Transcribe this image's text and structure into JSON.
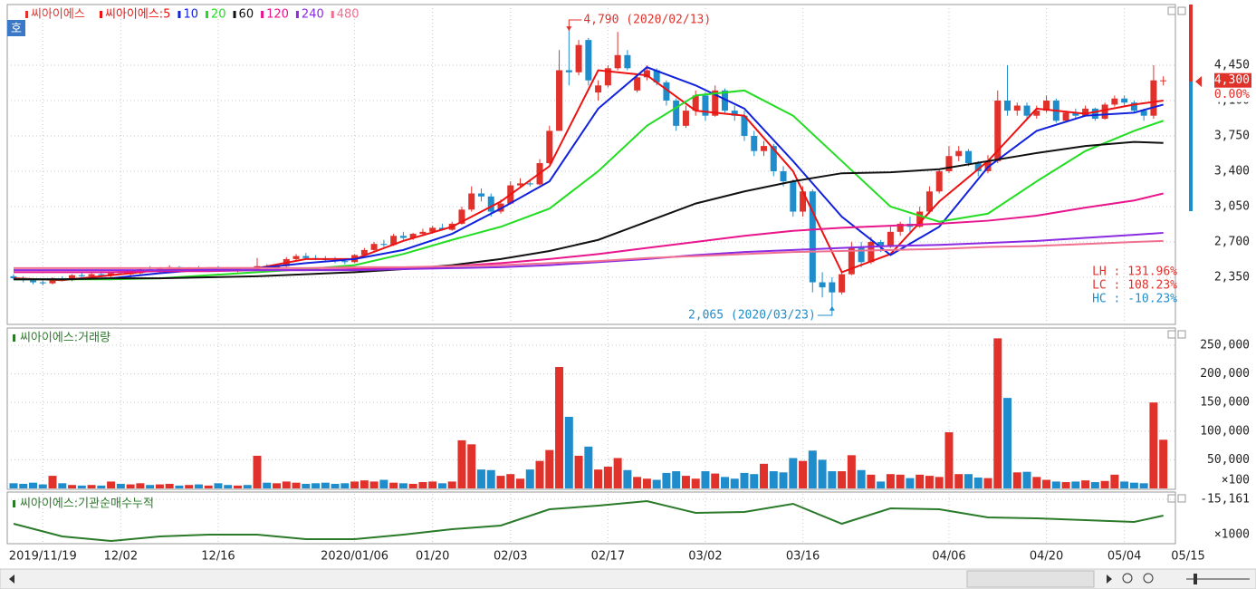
{
  "chart_data": [
    {
      "type": "candlestick",
      "title": "씨아이에스",
      "up_color": "#e0312b",
      "down_color": "#1f8dcb",
      "candles": [
        [
          2360,
          2380,
          2330,
          2340
        ],
        [
          2340,
          2360,
          2300,
          2320
        ],
        [
          2320,
          2340,
          2280,
          2300
        ],
        [
          2300,
          2320,
          2270,
          2290
        ],
        [
          2290,
          2350,
          2280,
          2340
        ],
        [
          2330,
          2360,
          2310,
          2320
        ],
        [
          2320,
          2380,
          2310,
          2370
        ],
        [
          2370,
          2400,
          2350,
          2360
        ],
        [
          2360,
          2390,
          2340,
          2380
        ],
        [
          2380,
          2410,
          2360,
          2370
        ],
        [
          2370,
          2400,
          2350,
          2390
        ],
        [
          2390,
          2420,
          2370,
          2380
        ],
        [
          2380,
          2400,
          2360,
          2390
        ],
        [
          2390,
          2440,
          2380,
          2430
        ],
        [
          2430,
          2460,
          2410,
          2420
        ],
        [
          2420,
          2450,
          2400,
          2440
        ],
        [
          2440,
          2470,
          2420,
          2450
        ],
        [
          2450,
          2460,
          2420,
          2430
        ],
        [
          2430,
          2450,
          2410,
          2440
        ],
        [
          2440,
          2460,
          2420,
          2430
        ],
        [
          2430,
          2450,
          2410,
          2440
        ],
        [
          2440,
          2460,
          2420,
          2430
        ],
        [
          2430,
          2450,
          2410,
          2420
        ],
        [
          2420,
          2440,
          2400,
          2430
        ],
        [
          2430,
          2450,
          2410,
          2420
        ],
        [
          2420,
          2540,
          2420,
          2460
        ],
        [
          2460,
          2480,
          2430,
          2440
        ],
        [
          2440,
          2470,
          2420,
          2460
        ],
        [
          2460,
          2550,
          2450,
          2530
        ],
        [
          2530,
          2580,
          2510,
          2560
        ],
        [
          2560,
          2590,
          2530,
          2540
        ],
        [
          2540,
          2570,
          2520,
          2530
        ],
        [
          2530,
          2560,
          2500,
          2520
        ],
        [
          2520,
          2550,
          2490,
          2510
        ],
        [
          2510,
          2530,
          2480,
          2500
        ],
        [
          2500,
          2580,
          2490,
          2570
        ],
        [
          2570,
          2640,
          2560,
          2620
        ],
        [
          2620,
          2700,
          2600,
          2680
        ],
        [
          2680,
          2720,
          2650,
          2670
        ],
        [
          2670,
          2780,
          2660,
          2760
        ],
        [
          2760,
          2800,
          2720,
          2740
        ],
        [
          2740,
          2790,
          2720,
          2780
        ],
        [
          2780,
          2830,
          2760,
          2800
        ],
        [
          2800,
          2860,
          2780,
          2840
        ],
        [
          2840,
          2880,
          2810,
          2820
        ],
        [
          2820,
          2900,
          2810,
          2880
        ],
        [
          2880,
          3050,
          2870,
          3020
        ],
        [
          3020,
          3250,
          3000,
          3180
        ],
        [
          3180,
          3230,
          3100,
          3150
        ],
        [
          3150,
          3180,
          2950,
          3000
        ],
        [
          3000,
          3120,
          2980,
          3080
        ],
        [
          3080,
          3300,
          3070,
          3260
        ],
        [
          3260,
          3330,
          3240,
          3280
        ],
        [
          3280,
          3320,
          3250,
          3270
        ],
        [
          3270,
          3520,
          3260,
          3480
        ],
        [
          3480,
          3850,
          3470,
          3800
        ],
        [
          3800,
          4600,
          3800,
          4400
        ],
        [
          4400,
          4790,
          4250,
          4380
        ],
        [
          4380,
          4700,
          4350,
          4650
        ],
        [
          4700,
          4720,
          4250,
          4300
        ],
        [
          4180,
          4300,
          4100,
          4250
        ],
        [
          4250,
          4450,
          4230,
          4420
        ],
        [
          4420,
          4780,
          4400,
          4550
        ],
        [
          4550,
          4600,
          4400,
          4420
        ],
        [
          4200,
          4350,
          4180,
          4330
        ],
        [
          4330,
          4450,
          4300,
          4400
        ],
        [
          4400,
          4420,
          4250,
          4280
        ],
        [
          4280,
          4300,
          4050,
          4100
        ],
        [
          4100,
          4120,
          3800,
          3850
        ],
        [
          3850,
          4050,
          3830,
          4000
        ],
        [
          4000,
          4200,
          3950,
          4150
        ],
        [
          4150,
          4180,
          3900,
          3950
        ],
        [
          3950,
          4250,
          3940,
          4200
        ],
        [
          4200,
          4220,
          3980,
          4000
        ],
        [
          4000,
          4050,
          3900,
          3950
        ],
        [
          3950,
          4000,
          3700,
          3750
        ],
        [
          3750,
          3800,
          3550,
          3600
        ],
        [
          3600,
          3700,
          3550,
          3650
        ],
        [
          3650,
          3670,
          3350,
          3400
        ],
        [
          3400,
          3450,
          3250,
          3300
        ],
        [
          3300,
          3320,
          2950,
          3000
        ],
        [
          3000,
          3250,
          2950,
          3200
        ],
        [
          3200,
          3220,
          2200,
          2300
        ],
        [
          2300,
          2400,
          2150,
          2250
        ],
        [
          2300,
          2350,
          2065,
          2200
        ],
        [
          2200,
          2400,
          2180,
          2380
        ],
        [
          2380,
          2700,
          2370,
          2650
        ],
        [
          2650,
          2700,
          2450,
          2500
        ],
        [
          2500,
          2750,
          2480,
          2700
        ],
        [
          2700,
          2720,
          2600,
          2650
        ],
        [
          2650,
          2850,
          2640,
          2800
        ],
        [
          2800,
          2900,
          2760,
          2880
        ],
        [
          2880,
          2950,
          2800,
          2850
        ],
        [
          2850,
          3050,
          2840,
          3000
        ],
        [
          3000,
          3250,
          2980,
          3200
        ],
        [
          3200,
          3420,
          3180,
          3400
        ],
        [
          3400,
          3650,
          3380,
          3550
        ],
        [
          3550,
          3650,
          3500,
          3600
        ],
        [
          3600,
          3620,
          3450,
          3480
        ],
        [
          3480,
          3500,
          3350,
          3400
        ],
        [
          3400,
          3560,
          3380,
          3500
        ],
        [
          3500,
          4200,
          3480,
          4100
        ],
        [
          4100,
          4450,
          3950,
          4000
        ],
        [
          4000,
          4080,
          3950,
          4050
        ],
        [
          4050,
          4080,
          3900,
          3950
        ],
        [
          3950,
          4050,
          3920,
          4000
        ],
        [
          4000,
          4150,
          3980,
          4100
        ],
        [
          4100,
          4120,
          3880,
          3900
        ],
        [
          3900,
          4000,
          3880,
          3980
        ],
        [
          3980,
          4020,
          3920,
          3950
        ],
        [
          3950,
          4050,
          3940,
          4020
        ],
        [
          4020,
          4030,
          3900,
          3920
        ],
        [
          3920,
          4080,
          3910,
          4060
        ],
        [
          4060,
          4150,
          4040,
          4120
        ],
        [
          4120,
          4150,
          4050,
          4080
        ],
        [
          4080,
          4100,
          3980,
          4000
        ],
        [
          4000,
          4020,
          3900,
          3950
        ],
        [
          3950,
          4450,
          3920,
          4300
        ],
        [
          4300,
          4340,
          4250,
          4300
        ]
      ],
      "ylim": [
        1883,
        5051
      ],
      "yticks": [
        {
          "value": 2350,
          "label": "2,350"
        },
        {
          "value": 2700,
          "label": "2,700"
        },
        {
          "value": 3050,
          "label": "3,050"
        },
        {
          "value": 3400,
          "label": "3,400"
        },
        {
          "value": 3750,
          "label": "3,750"
        },
        {
          "value": 4100,
          "label": "4,100"
        },
        {
          "value": 4450,
          "label": "4,450"
        }
      ],
      "xticks": [
        {
          "value": 3,
          "label": "2019/11/19"
        },
        {
          "value": 11,
          "label": "12/02"
        },
        {
          "value": 21,
          "label": "12/16"
        },
        {
          "value": 35,
          "label": "2020/01/06"
        },
        {
          "value": 43,
          "label": "01/20"
        },
        {
          "value": 51,
          "label": "02/03"
        },
        {
          "value": 61,
          "label": "02/17"
        },
        {
          "value": 71,
          "label": "03/02"
        },
        {
          "value": 81,
          "label": "03/16"
        },
        {
          "value": 96,
          "label": "04/06"
        },
        {
          "value": 106,
          "label": "04/20"
        },
        {
          "value": 114,
          "label": "05/04"
        },
        {
          "value": 121,
          "label": "05/15"
        }
      ],
      "ma_x": [
        0,
        5,
        10,
        15,
        20,
        25,
        30,
        35,
        40,
        45,
        50,
        55,
        60,
        65,
        70,
        75,
        80,
        85,
        90,
        95,
        100,
        105,
        110,
        115,
        118
      ],
      "series": [
        {
          "name": "씨아이에스:5",
          "color": "#ee1111",
          "values": [
            2340,
            2320,
            2370,
            2420,
            2440,
            2440,
            2530,
            2530,
            2710,
            2850,
            3100,
            3450,
            4400,
            4350,
            4000,
            3950,
            3400,
            2400,
            2580,
            3100,
            3500,
            4020,
            3970,
            4060,
            4100
          ]
        },
        {
          "name": "10",
          "color": "#1122dd",
          "values": [
            2330,
            2330,
            2340,
            2390,
            2430,
            2440,
            2490,
            2530,
            2620,
            2780,
            3030,
            3300,
            4020,
            4430,
            4250,
            4020,
            3500,
            2950,
            2570,
            2850,
            3440,
            3800,
            3950,
            3980,
            4060
          ]
        },
        {
          "name": "20",
          "color": "#22dd22",
          "values": [
            2330,
            2330,
            2330,
            2340,
            2370,
            2400,
            2430,
            2470,
            2580,
            2720,
            2850,
            3030,
            3400,
            3850,
            4150,
            4200,
            3950,
            3500,
            3050,
            2900,
            2980,
            3300,
            3600,
            3800,
            3900
          ]
        },
        {
          "name": "60",
          "color": "#111111",
          "values": [
            2330,
            2330,
            2340,
            2340,
            2350,
            2360,
            2380,
            2400,
            2430,
            2470,
            2530,
            2610,
            2720,
            2900,
            3080,
            3200,
            3300,
            3380,
            3390,
            3420,
            3500,
            3580,
            3650,
            3690,
            3680
          ]
        },
        {
          "name": "120",
          "color": "#e8158c",
          "values": [
            2400,
            2400,
            2400,
            2410,
            2410,
            2420,
            2420,
            2430,
            2440,
            2460,
            2490,
            2530,
            2580,
            2640,
            2700,
            2760,
            2810,
            2840,
            2860,
            2880,
            2910,
            2960,
            3040,
            3110,
            3180
          ]
        },
        {
          "name": "240",
          "color": "#8a2be2",
          "values": [
            2420,
            2420,
            2420,
            2420,
            2420,
            2420,
            2420,
            2420,
            2430,
            2440,
            2450,
            2470,
            2500,
            2530,
            2570,
            2600,
            2620,
            2640,
            2660,
            2670,
            2690,
            2710,
            2740,
            2770,
            2790
          ]
        },
        {
          "name": "480",
          "color": "#f07090",
          "values": [
            2440,
            2440,
            2440,
            2440,
            2440,
            2440,
            2440,
            2450,
            2450,
            2460,
            2470,
            2490,
            2510,
            2540,
            2560,
            2580,
            2600,
            2610,
            2620,
            2630,
            2650,
            2660,
            2680,
            2700,
            2710
          ]
        }
      ],
      "last_price": {
        "value": 4300,
        "label": "4,300"
      },
      "change_label": "0.00%",
      "annotations": [
        {
          "text": "4,790 (2020/02/13)",
          "x": 57,
          "y": 4790
        },
        {
          "text": "2,065 (2020/03/23)",
          "x": 84,
          "y": 2065
        }
      ],
      "stats": [
        "LH : 131.96%",
        "LC : 108.23%",
        "HC : -10.23%"
      ],
      "grid": true
    },
    {
      "type": "bar",
      "title": "씨아이에스:거래량",
      "unit_label": "×100",
      "values": [
        9000,
        8000,
        10000,
        7000,
        22000,
        9000,
        6000,
        5000,
        6000,
        5000,
        12000,
        8000,
        7000,
        9000,
        6000,
        7000,
        8000,
        5000,
        6000,
        7000,
        5000,
        9000,
        6000,
        5000,
        6000,
        57000,
        10000,
        9000,
        12000,
        10000,
        8000,
        9000,
        10000,
        8000,
        9000,
        12000,
        14000,
        12000,
        15000,
        10000,
        9000,
        8000,
        11000,
        12000,
        9000,
        12000,
        84000,
        77000,
        33000,
        32000,
        22000,
        25000,
        17000,
        33000,
        48000,
        67000,
        212000,
        125000,
        57000,
        73000,
        33000,
        38000,
        53000,
        32000,
        20000,
        17000,
        15000,
        27000,
        30000,
        22000,
        17000,
        30000,
        26000,
        20000,
        17000,
        27000,
        25000,
        43000,
        30000,
        28000,
        53000,
        48000,
        66000,
        50000,
        30000,
        30000,
        58000,
        32000,
        24000,
        12000,
        25000,
        24000,
        18000,
        24000,
        22000,
        20000,
        98000,
        25000,
        25000,
        19000,
        18000,
        262000,
        158000,
        28000,
        29000,
        20000,
        15000,
        12000,
        11000,
        12000,
        14000,
        11000,
        13000,
        24000,
        12000,
        10000,
        9000,
        150000,
        85000
      ],
      "ylim": [
        0,
        280000
      ],
      "yticks": [
        {
          "value": 50000,
          "label": "50,000"
        },
        {
          "value": 100000,
          "label": "100,000"
        },
        {
          "value": 150000,
          "label": "150,000"
        },
        {
          "value": 200000,
          "label": "200,000"
        },
        {
          "value": 250000,
          "label": "250,000"
        }
      ],
      "grid": true
    },
    {
      "type": "line",
      "title": "씨아이에스:기관순매수누적",
      "unit_label": "×1000",
      "color": "#2a7a2a",
      "x": [
        0,
        5,
        10,
        15,
        20,
        25,
        30,
        35,
        40,
        45,
        50,
        55,
        60,
        65,
        70,
        75,
        80,
        85,
        90,
        95,
        100,
        105,
        110,
        115,
        118
      ],
      "values": [
        -15701,
        -15981,
        -16081,
        -15981,
        -15941,
        -15941,
        -16041,
        -16041,
        -15941,
        -15821,
        -15741,
        -15381,
        -15301,
        -15201,
        -15461,
        -15441,
        -15261,
        -15701,
        -15361,
        -15381,
        -15561,
        -15581,
        -15621,
        -15661,
        -15521
      ],
      "ylim": [
        -16141,
        -15041
      ],
      "yticks": [
        {
          "value": -15161,
          "label": "-15,161"
        }
      ],
      "grid": true
    }
  ],
  "ui": {
    "button": "호"
  }
}
